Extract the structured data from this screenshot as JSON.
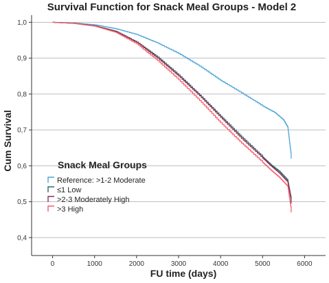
{
  "chart_data": {
    "type": "line",
    "title": "Survival Function for Snack Meal Groups - Model 2",
    "xlabel": "FU time (days)",
    "ylabel": "Cum Survival",
    "xlim": [
      -500,
      6500
    ],
    "ylim": [
      0.35,
      1.02
    ],
    "xticks": [
      0,
      1000,
      2000,
      3000,
      4000,
      5000,
      6000
    ],
    "yticks": [
      0.4,
      0.5,
      0.6,
      0.7,
      0.8,
      0.9,
      1.0
    ],
    "xtick_labels": [
      "0",
      "1000",
      "2000",
      "3000",
      "4000",
      "5000",
      "6000"
    ],
    "ytick_labels": [
      "0,4",
      "0,5",
      "0,6",
      "0,7",
      "0,8",
      "0,9",
      "1,0"
    ],
    "grid": "horizontal",
    "legend": {
      "title": "Snack Meal Groups",
      "placement": "lower-left"
    },
    "series": [
      {
        "name": "Reference: >1-2 Moderate",
        "color": "#4aa3d8",
        "x": [
          0,
          500,
          1000,
          1500,
          2000,
          2500,
          3000,
          3500,
          4000,
          4500,
          5000,
          5300,
          5500,
          5600,
          5680
        ],
        "y": [
          1.0,
          0.998,
          0.993,
          0.982,
          0.966,
          0.942,
          0.913,
          0.878,
          0.838,
          0.803,
          0.767,
          0.748,
          0.728,
          0.708,
          0.63
        ]
      },
      {
        "name": "≤1 Low",
        "color": "#2b6b63",
        "x": [
          0,
          500,
          1000,
          1500,
          2000,
          2500,
          3000,
          3500,
          4000,
          4500,
          5000,
          5200,
          5400,
          5600,
          5680
        ],
        "y": [
          1.0,
          0.997,
          0.99,
          0.975,
          0.945,
          0.903,
          0.853,
          0.797,
          0.738,
          0.68,
          0.625,
          0.603,
          0.585,
          0.56,
          0.51
        ]
      },
      {
        "name": ">2-3 Moderately High",
        "color": "#8b2a5c",
        "x": [
          0,
          500,
          1000,
          1500,
          2000,
          2500,
          3000,
          3500,
          4000,
          4500,
          5000,
          5200,
          5400,
          5600,
          5680
        ],
        "y": [
          1.0,
          0.997,
          0.99,
          0.974,
          0.944,
          0.9,
          0.85,
          0.795,
          0.735,
          0.676,
          0.622,
          0.6,
          0.58,
          0.555,
          0.505
        ]
      },
      {
        "name": ">3 High",
        "color": "#f25c62",
        "x": [
          0,
          500,
          1000,
          1500,
          2000,
          2500,
          3000,
          3500,
          4000,
          4500,
          5000,
          5200,
          5400,
          5600,
          5680
        ],
        "y": [
          1.0,
          0.997,
          0.989,
          0.972,
          0.94,
          0.893,
          0.84,
          0.782,
          0.72,
          0.663,
          0.61,
          0.588,
          0.568,
          0.543,
          0.48
        ]
      }
    ]
  }
}
